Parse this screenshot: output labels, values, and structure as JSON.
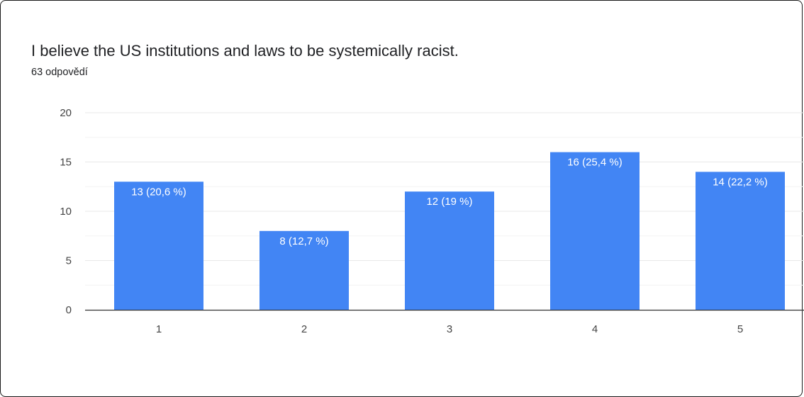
{
  "question": {
    "title": "I believe the US institutions and laws to be systemically racist.",
    "responses": "63 odpovědí"
  },
  "colors": {
    "bar": "#4285f4",
    "grid": "#e8e8e8",
    "baseline": "#333333"
  },
  "chart_data": {
    "type": "bar",
    "categories": [
      "1",
      "2",
      "3",
      "4",
      "5"
    ],
    "values": [
      13,
      8,
      12,
      16,
      14
    ],
    "data_labels": [
      "13 (20,6 %)",
      "8 (12,7 %)",
      "12 (19 %)",
      "16 (25,4 %)",
      "14 (22,2 %)"
    ],
    "ylim": [
      0,
      20
    ],
    "yticks": [
      0,
      5,
      10,
      15,
      20
    ],
    "grid": true,
    "legend": "none"
  }
}
